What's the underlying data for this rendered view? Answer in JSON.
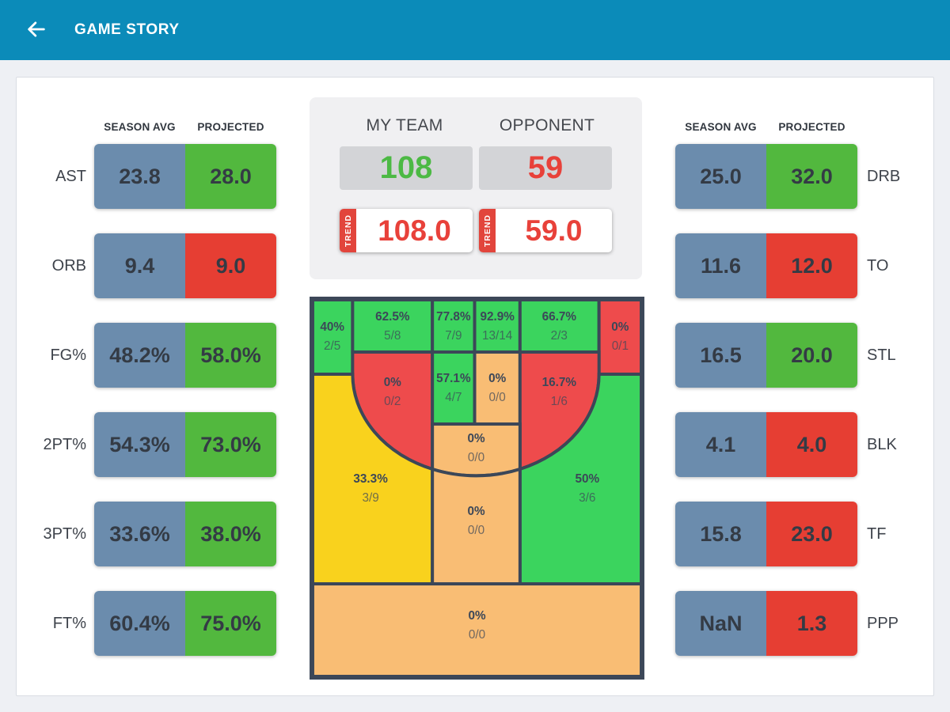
{
  "palette": {
    "header_bg": "#0b8bb9",
    "page_bg": "#eef0f4",
    "card_bg": "#ffffff",
    "panel_bg": "#f0f0f2",
    "scorebox_bg": "#d3d4d7",
    "bar_blue": "#6b8cad",
    "bar_green": "#52b83e",
    "bar_red": "#e63e33",
    "score_green": "#4cb944",
    "score_red": "#e8413a",
    "trend_red": "#e2453c",
    "court_green": "#3bd45e",
    "court_red": "#ee4b4c",
    "court_yellow": "#f9d21d",
    "court_orange": "#f9bd74",
    "court_line": "#3c4758"
  },
  "app_bar": {
    "title": "GAME STORY"
  },
  "table_headers": {
    "season_avg": "SEASON AVG",
    "projected": "PROJECTED"
  },
  "left_stats": [
    {
      "label": "AST",
      "season": "23.8",
      "projected": "28.0",
      "status": "good"
    },
    {
      "label": "ORB",
      "season": "9.4",
      "projected": "9.0",
      "status": "bad"
    },
    {
      "label": "FG%",
      "season": "48.2%",
      "projected": "58.0%",
      "status": "good"
    },
    {
      "label": "2PT%",
      "season": "54.3%",
      "projected": "73.0%",
      "status": "good"
    },
    {
      "label": "3PT%",
      "season": "33.6%",
      "projected": "38.0%",
      "status": "good"
    },
    {
      "label": "FT%",
      "season": "60.4%",
      "projected": "75.0%",
      "status": "good"
    }
  ],
  "right_stats": [
    {
      "label": "DRB",
      "season": "25.0",
      "projected": "32.0",
      "status": "good"
    },
    {
      "label": "TO",
      "season": "11.6",
      "projected": "12.0",
      "status": "bad"
    },
    {
      "label": "STL",
      "season": "16.5",
      "projected": "20.0",
      "status": "good"
    },
    {
      "label": "BLK",
      "season": "4.1",
      "projected": "4.0",
      "status": "bad"
    },
    {
      "label": "TF",
      "season": "15.8",
      "projected": "23.0",
      "status": "bad"
    },
    {
      "label": "PPP",
      "season": "NaN",
      "projected": "1.3",
      "status": "bad"
    }
  ],
  "scoreboard": {
    "my_team_label": "MY TEAM",
    "opponent_label": "OPPONENT",
    "my_team_score": "108",
    "opponent_score": "59",
    "trend_label": "TREND",
    "my_team_trend": "108.0",
    "opponent_trend": "59.0"
  },
  "shot_chart": {
    "zones": [
      {
        "id": "corner-left-3",
        "pct": "40%",
        "made_attempted": "2/5",
        "color": "green"
      },
      {
        "id": "baseline-mid-left",
        "pct": "62.5%",
        "made_attempted": "5/8",
        "color": "green"
      },
      {
        "id": "close-left",
        "pct": "77.8%",
        "made_attempted": "7/9",
        "color": "green"
      },
      {
        "id": "close-right",
        "pct": "92.9%",
        "made_attempted": "13/14",
        "color": "green"
      },
      {
        "id": "baseline-mid-right",
        "pct": "66.7%",
        "made_attempted": "2/3",
        "color": "green"
      },
      {
        "id": "corner-right-3",
        "pct": "0%",
        "made_attempted": "0/1",
        "color": "red"
      },
      {
        "id": "elbow-left",
        "pct": "0%",
        "made_attempted": "0/2",
        "color": "red"
      },
      {
        "id": "paint-upper-left",
        "pct": "57.1%",
        "made_attempted": "4/7",
        "color": "green"
      },
      {
        "id": "paint-upper-right",
        "pct": "0%",
        "made_attempted": "0/0",
        "color": "orange"
      },
      {
        "id": "elbow-right",
        "pct": "16.7%",
        "made_attempted": "1/6",
        "color": "red"
      },
      {
        "id": "paint-mid",
        "pct": "0%",
        "made_attempted": "0/0",
        "color": "orange"
      },
      {
        "id": "wing-left-3",
        "pct": "33.3%",
        "made_attempted": "3/9",
        "color": "yellow"
      },
      {
        "id": "wing-right-3",
        "pct": "50%",
        "made_attempted": "3/6",
        "color": "green"
      },
      {
        "id": "paint-lower",
        "pct": "0%",
        "made_attempted": "0/0",
        "color": "orange"
      },
      {
        "id": "top-key-3",
        "pct": "0%",
        "made_attempted": "0/0",
        "color": "orange"
      }
    ]
  }
}
